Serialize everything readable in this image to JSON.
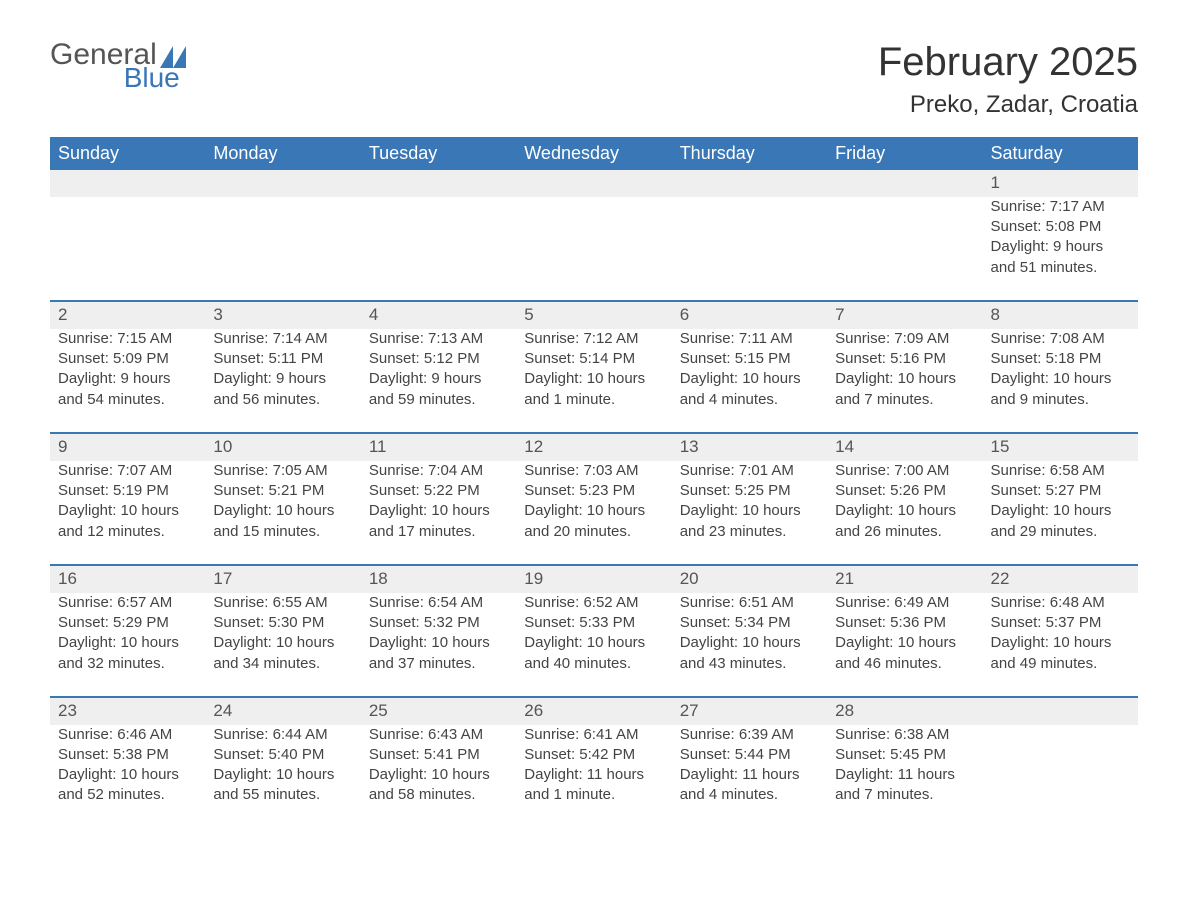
{
  "logo": {
    "general": "General",
    "blue": "Blue"
  },
  "title": "February 2025",
  "location": "Preko, Zadar, Croatia",
  "colors": {
    "header_bg": "#3a77b7",
    "header_text": "#ffffff",
    "daynum_bg": "#efefef",
    "daynum_border": "#3a77b7",
    "body_text": "#444",
    "page_bg": "#ffffff"
  },
  "dayHeaders": [
    "Sunday",
    "Monday",
    "Tuesday",
    "Wednesday",
    "Thursday",
    "Friday",
    "Saturday"
  ],
  "weeks": [
    [
      null,
      null,
      null,
      null,
      null,
      null,
      {
        "n": "1",
        "sunrise": "Sunrise: 7:17 AM",
        "sunset": "Sunset: 5:08 PM",
        "dl1": "Daylight: 9 hours",
        "dl2": "and 51 minutes."
      }
    ],
    [
      {
        "n": "2",
        "sunrise": "Sunrise: 7:15 AM",
        "sunset": "Sunset: 5:09 PM",
        "dl1": "Daylight: 9 hours",
        "dl2": "and 54 minutes."
      },
      {
        "n": "3",
        "sunrise": "Sunrise: 7:14 AM",
        "sunset": "Sunset: 5:11 PM",
        "dl1": "Daylight: 9 hours",
        "dl2": "and 56 minutes."
      },
      {
        "n": "4",
        "sunrise": "Sunrise: 7:13 AM",
        "sunset": "Sunset: 5:12 PM",
        "dl1": "Daylight: 9 hours",
        "dl2": "and 59 minutes."
      },
      {
        "n": "5",
        "sunrise": "Sunrise: 7:12 AM",
        "sunset": "Sunset: 5:14 PM",
        "dl1": "Daylight: 10 hours",
        "dl2": "and 1 minute."
      },
      {
        "n": "6",
        "sunrise": "Sunrise: 7:11 AM",
        "sunset": "Sunset: 5:15 PM",
        "dl1": "Daylight: 10 hours",
        "dl2": "and 4 minutes."
      },
      {
        "n": "7",
        "sunrise": "Sunrise: 7:09 AM",
        "sunset": "Sunset: 5:16 PM",
        "dl1": "Daylight: 10 hours",
        "dl2": "and 7 minutes."
      },
      {
        "n": "8",
        "sunrise": "Sunrise: 7:08 AM",
        "sunset": "Sunset: 5:18 PM",
        "dl1": "Daylight: 10 hours",
        "dl2": "and 9 minutes."
      }
    ],
    [
      {
        "n": "9",
        "sunrise": "Sunrise: 7:07 AM",
        "sunset": "Sunset: 5:19 PM",
        "dl1": "Daylight: 10 hours",
        "dl2": "and 12 minutes."
      },
      {
        "n": "10",
        "sunrise": "Sunrise: 7:05 AM",
        "sunset": "Sunset: 5:21 PM",
        "dl1": "Daylight: 10 hours",
        "dl2": "and 15 minutes."
      },
      {
        "n": "11",
        "sunrise": "Sunrise: 7:04 AM",
        "sunset": "Sunset: 5:22 PM",
        "dl1": "Daylight: 10 hours",
        "dl2": "and 17 minutes."
      },
      {
        "n": "12",
        "sunrise": "Sunrise: 7:03 AM",
        "sunset": "Sunset: 5:23 PM",
        "dl1": "Daylight: 10 hours",
        "dl2": "and 20 minutes."
      },
      {
        "n": "13",
        "sunrise": "Sunrise: 7:01 AM",
        "sunset": "Sunset: 5:25 PM",
        "dl1": "Daylight: 10 hours",
        "dl2": "and 23 minutes."
      },
      {
        "n": "14",
        "sunrise": "Sunrise: 7:00 AM",
        "sunset": "Sunset: 5:26 PM",
        "dl1": "Daylight: 10 hours",
        "dl2": "and 26 minutes."
      },
      {
        "n": "15",
        "sunrise": "Sunrise: 6:58 AM",
        "sunset": "Sunset: 5:27 PM",
        "dl1": "Daylight: 10 hours",
        "dl2": "and 29 minutes."
      }
    ],
    [
      {
        "n": "16",
        "sunrise": "Sunrise: 6:57 AM",
        "sunset": "Sunset: 5:29 PM",
        "dl1": "Daylight: 10 hours",
        "dl2": "and 32 minutes."
      },
      {
        "n": "17",
        "sunrise": "Sunrise: 6:55 AM",
        "sunset": "Sunset: 5:30 PM",
        "dl1": "Daylight: 10 hours",
        "dl2": "and 34 minutes."
      },
      {
        "n": "18",
        "sunrise": "Sunrise: 6:54 AM",
        "sunset": "Sunset: 5:32 PM",
        "dl1": "Daylight: 10 hours",
        "dl2": "and 37 minutes."
      },
      {
        "n": "19",
        "sunrise": "Sunrise: 6:52 AM",
        "sunset": "Sunset: 5:33 PM",
        "dl1": "Daylight: 10 hours",
        "dl2": "and 40 minutes."
      },
      {
        "n": "20",
        "sunrise": "Sunrise: 6:51 AM",
        "sunset": "Sunset: 5:34 PM",
        "dl1": "Daylight: 10 hours",
        "dl2": "and 43 minutes."
      },
      {
        "n": "21",
        "sunrise": "Sunrise: 6:49 AM",
        "sunset": "Sunset: 5:36 PM",
        "dl1": "Daylight: 10 hours",
        "dl2": "and 46 minutes."
      },
      {
        "n": "22",
        "sunrise": "Sunrise: 6:48 AM",
        "sunset": "Sunset: 5:37 PM",
        "dl1": "Daylight: 10 hours",
        "dl2": "and 49 minutes."
      }
    ],
    [
      {
        "n": "23",
        "sunrise": "Sunrise: 6:46 AM",
        "sunset": "Sunset: 5:38 PM",
        "dl1": "Daylight: 10 hours",
        "dl2": "and 52 minutes."
      },
      {
        "n": "24",
        "sunrise": "Sunrise: 6:44 AM",
        "sunset": "Sunset: 5:40 PM",
        "dl1": "Daylight: 10 hours",
        "dl2": "and 55 minutes."
      },
      {
        "n": "25",
        "sunrise": "Sunrise: 6:43 AM",
        "sunset": "Sunset: 5:41 PM",
        "dl1": "Daylight: 10 hours",
        "dl2": "and 58 minutes."
      },
      {
        "n": "26",
        "sunrise": "Sunrise: 6:41 AM",
        "sunset": "Sunset: 5:42 PM",
        "dl1": "Daylight: 11 hours",
        "dl2": "and 1 minute."
      },
      {
        "n": "27",
        "sunrise": "Sunrise: 6:39 AM",
        "sunset": "Sunset: 5:44 PM",
        "dl1": "Daylight: 11 hours",
        "dl2": "and 4 minutes."
      },
      {
        "n": "28",
        "sunrise": "Sunrise: 6:38 AM",
        "sunset": "Sunset: 5:45 PM",
        "dl1": "Daylight: 11 hours",
        "dl2": "and 7 minutes."
      },
      null
    ]
  ]
}
